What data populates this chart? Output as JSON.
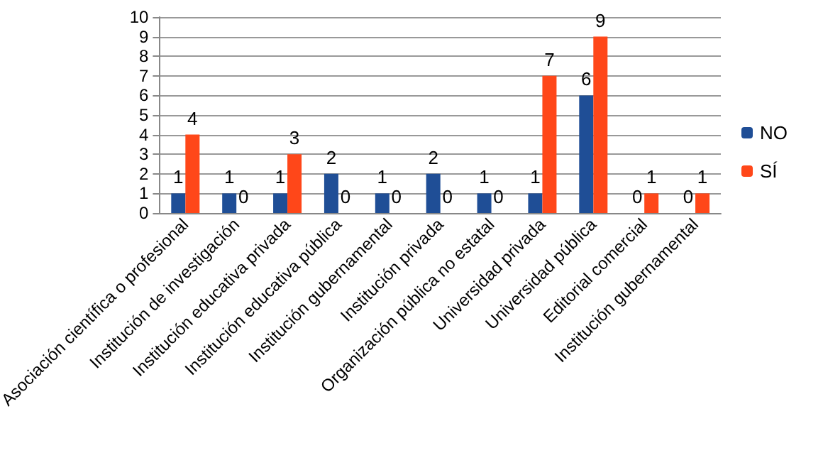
{
  "chart_data": {
    "type": "bar",
    "categories": [
      "Asociación científica o profesional",
      "Institución de investigación",
      "Institución educativa privada",
      "Institución educativa pública",
      "Institución gubernamental",
      "Institución privada",
      "Organización pública no estatal",
      "Universidad privada",
      "Universidad pública",
      "Editorial comercial",
      "Institución gubernamental"
    ],
    "series": [
      {
        "name": "NO",
        "color": "#1f4e96",
        "values": [
          1,
          1,
          1,
          2,
          1,
          2,
          1,
          1,
          6,
          0,
          0
        ]
      },
      {
        "name": "SÍ",
        "color": "#ff4719",
        "values": [
          4,
          0,
          3,
          0,
          0,
          0,
          0,
          7,
          9,
          1,
          1
        ]
      }
    ],
    "ylim": [
      0,
      10
    ],
    "yticks": [
      0,
      1,
      2,
      3,
      4,
      5,
      6,
      7,
      8,
      9,
      10
    ],
    "grid": "y",
    "legend": "right",
    "data_labels": true
  }
}
